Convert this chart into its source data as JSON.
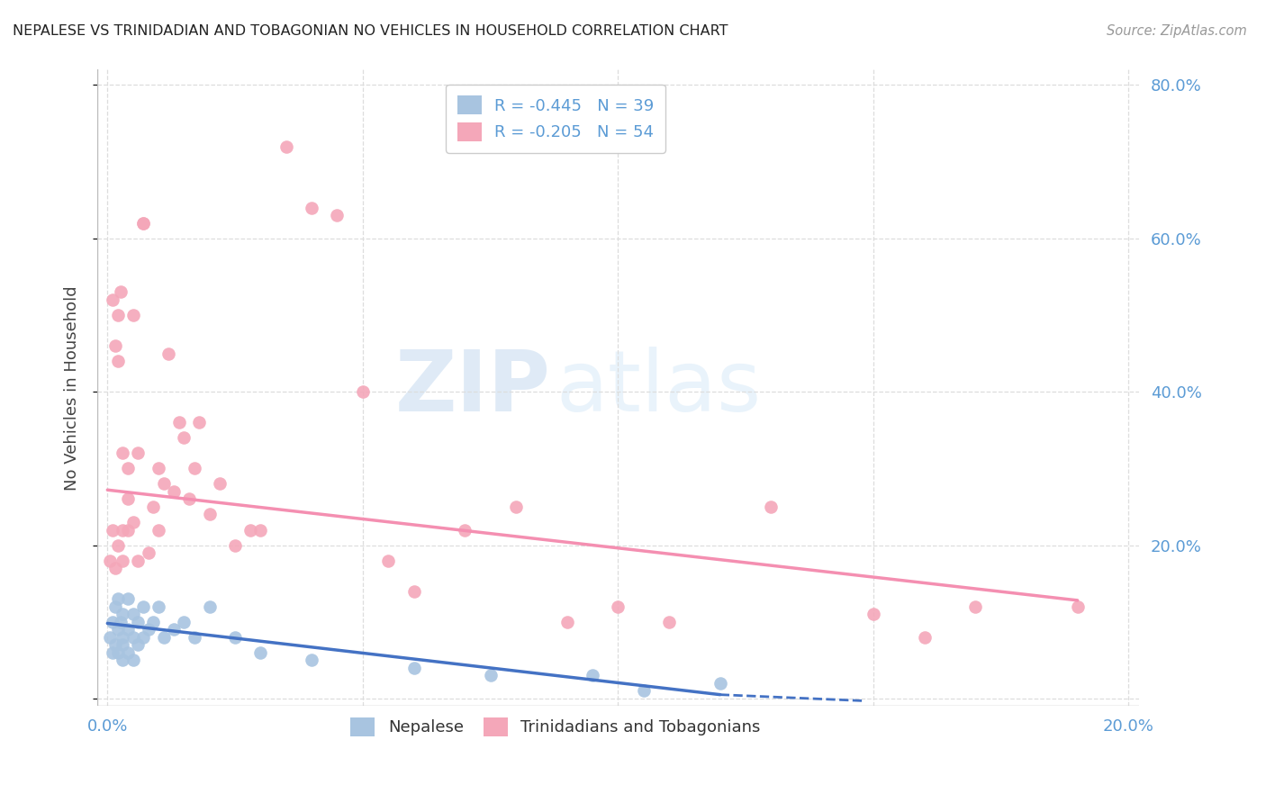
{
  "title": "NEPALESE VS TRINIDADIAN AND TOBAGONIAN NO VEHICLES IN HOUSEHOLD CORRELATION CHART",
  "source": "Source: ZipAtlas.com",
  "ylabel": "No Vehicles in Household",
  "r_nepalese": -0.445,
  "n_nepalese": 39,
  "r_trini": -0.205,
  "n_trini": 54,
  "xlim": [
    -0.002,
    0.202
  ],
  "ylim": [
    -0.01,
    0.82
  ],
  "color_nepalese": "#a8c4e0",
  "color_trini": "#f4a7b9",
  "line_color_nepalese": "#4472c4",
  "line_color_trini": "#f48fb1",
  "watermark_zip": "ZIP",
  "watermark_atlas": "atlas",
  "tick_color": "#5b9bd5",
  "nepalese_x": [
    0.0005,
    0.001,
    0.001,
    0.0015,
    0.0015,
    0.002,
    0.002,
    0.002,
    0.0025,
    0.003,
    0.003,
    0.003,
    0.003,
    0.004,
    0.004,
    0.004,
    0.005,
    0.005,
    0.005,
    0.006,
    0.006,
    0.007,
    0.007,
    0.008,
    0.009,
    0.01,
    0.011,
    0.013,
    0.015,
    0.017,
    0.02,
    0.025,
    0.03,
    0.04,
    0.06,
    0.075,
    0.095,
    0.105,
    0.12
  ],
  "nepalese_y": [
    0.08,
    0.1,
    0.06,
    0.12,
    0.07,
    0.13,
    0.09,
    0.06,
    0.1,
    0.11,
    0.08,
    0.07,
    0.05,
    0.13,
    0.09,
    0.06,
    0.11,
    0.08,
    0.05,
    0.1,
    0.07,
    0.12,
    0.08,
    0.09,
    0.1,
    0.12,
    0.08,
    0.09,
    0.1,
    0.08,
    0.12,
    0.08,
    0.06,
    0.05,
    0.04,
    0.03,
    0.03,
    0.01,
    0.02
  ],
  "trini_x": [
    0.0005,
    0.001,
    0.001,
    0.0015,
    0.0015,
    0.002,
    0.002,
    0.002,
    0.0025,
    0.003,
    0.003,
    0.003,
    0.004,
    0.004,
    0.004,
    0.005,
    0.005,
    0.006,
    0.006,
    0.007,
    0.007,
    0.008,
    0.009,
    0.01,
    0.01,
    0.011,
    0.012,
    0.013,
    0.014,
    0.015,
    0.016,
    0.017,
    0.018,
    0.02,
    0.022,
    0.025,
    0.028,
    0.03,
    0.035,
    0.04,
    0.045,
    0.05,
    0.055,
    0.06,
    0.07,
    0.08,
    0.09,
    0.1,
    0.11,
    0.13,
    0.15,
    0.16,
    0.17,
    0.19
  ],
  "trini_y": [
    0.18,
    0.52,
    0.22,
    0.46,
    0.17,
    0.44,
    0.2,
    0.5,
    0.53,
    0.32,
    0.18,
    0.22,
    0.3,
    0.26,
    0.22,
    0.5,
    0.23,
    0.32,
    0.18,
    0.62,
    0.62,
    0.19,
    0.25,
    0.3,
    0.22,
    0.28,
    0.45,
    0.27,
    0.36,
    0.34,
    0.26,
    0.3,
    0.36,
    0.24,
    0.28,
    0.2,
    0.22,
    0.22,
    0.72,
    0.64,
    0.63,
    0.4,
    0.18,
    0.14,
    0.22,
    0.25,
    0.1,
    0.12,
    0.1,
    0.25,
    0.11,
    0.08,
    0.12,
    0.12
  ]
}
